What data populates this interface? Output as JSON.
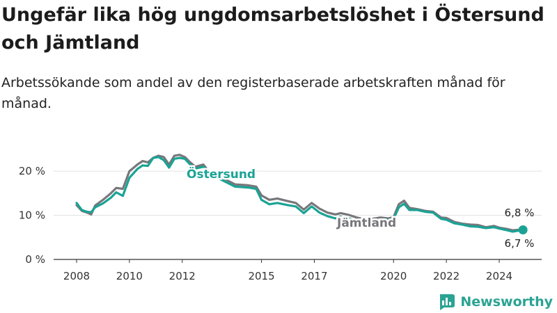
{
  "title": "Ungefär lika hög ungdomsarbetslöshet i Östersund och Jämtland",
  "subtitle": "Arbetssökande som andel av den registerbaserade arbetskraften månad för månad.",
  "brand": "Newsworthy",
  "colors": {
    "ostersund": "#1aa395",
    "jamtland": "#77777b",
    "grid": "#e2e2e2",
    "axis": "#333333"
  },
  "chart_data": {
    "type": "line",
    "title": "Ungefär lika hög ungdomsarbetslöshet i Östersund och Jämtland",
    "subtitle": "Arbetssökande som andel av den registerbaserade arbetskraften månad för månad.",
    "xlabel": "",
    "ylabel": "",
    "ylim": [
      0,
      26
    ],
    "xlim": [
      2008,
      2025.25
    ],
    "grid": "horizontal",
    "y_ticks": [
      0,
      10,
      20
    ],
    "y_tick_labels": [
      "0 %",
      "10 %",
      "20 %"
    ],
    "x_ticks": [
      2008,
      2010,
      2012,
      2015,
      2017,
      2020,
      2022,
      2024
    ],
    "x_tick_labels": [
      "2008",
      "2010",
      "2012",
      "2015",
      "2017",
      "2020",
      "2022",
      "2024"
    ],
    "series": [
      {
        "name": "Jämtland",
        "end_label": "6,8 %",
        "x": [
          2008.0,
          2008.2,
          2008.4,
          2008.55,
          2008.7,
          2009.0,
          2009.3,
          2009.5,
          2009.75,
          2010.0,
          2010.3,
          2010.5,
          2010.7,
          2010.9,
          2011.1,
          2011.3,
          2011.5,
          2011.7,
          2011.9,
          2012.1,
          2012.3,
          2012.5,
          2012.8,
          2013.0,
          2013.5,
          2014.0,
          2014.5,
          2014.8,
          2015.0,
          2015.3,
          2015.6,
          2016.0,
          2016.3,
          2016.6,
          2016.9,
          2017.2,
          2017.5,
          2017.8,
          2018.0,
          2018.3,
          2018.6,
          2019.0,
          2019.5,
          2019.8,
          2020.0,
          2020.2,
          2020.4,
          2020.6,
          2020.9,
          2021.2,
          2021.5,
          2021.8,
          2022.0,
          2022.3,
          2022.6,
          2022.9,
          2023.2,
          2023.5,
          2023.8,
          2024.0,
          2024.3,
          2024.5,
          2024.7,
          2024.9
        ],
        "y": [
          12.3,
          11.0,
          10.6,
          10.2,
          12.2,
          13.5,
          15.0,
          16.2,
          16.0,
          20.0,
          21.5,
          22.3,
          22.0,
          23.0,
          23.5,
          23.2,
          21.5,
          23.5,
          23.7,
          23.2,
          22.0,
          21.0,
          21.5,
          20.0,
          18.5,
          17.0,
          16.8,
          16.5,
          14.5,
          13.5,
          13.8,
          13.2,
          12.8,
          11.3,
          12.8,
          11.5,
          10.6,
          10.2,
          10.5,
          10.1,
          9.5,
          9.0,
          9.5,
          9.3,
          9.6,
          12.5,
          13.3,
          11.7,
          11.4,
          11.0,
          10.8,
          9.5,
          9.4,
          8.5,
          8.1,
          7.9,
          7.8,
          7.3,
          7.6,
          7.2,
          6.9,
          6.6,
          6.7,
          6.8
        ]
      },
      {
        "name": "Östersund",
        "end_label": "6,7 %",
        "x": [
          2008.0,
          2008.2,
          2008.4,
          2008.55,
          2008.7,
          2009.0,
          2009.3,
          2009.5,
          2009.75,
          2010.0,
          2010.3,
          2010.5,
          2010.7,
          2010.9,
          2011.1,
          2011.3,
          2011.5,
          2011.7,
          2011.9,
          2012.1,
          2012.3,
          2012.5,
          2012.8,
          2013.0,
          2013.5,
          2014.0,
          2014.5,
          2014.8,
          2015.0,
          2015.3,
          2015.6,
          2016.0,
          2016.3,
          2016.6,
          2016.9,
          2017.2,
          2017.5,
          2017.8,
          2018.0,
          2018.3,
          2018.6,
          2019.0,
          2019.5,
          2019.8,
          2020.0,
          2020.2,
          2020.4,
          2020.6,
          2020.9,
          2021.2,
          2021.5,
          2021.8,
          2022.0,
          2022.3,
          2022.6,
          2022.9,
          2023.2,
          2023.5,
          2023.8,
          2024.0,
          2024.3,
          2024.5,
          2024.7,
          2024.9
        ],
        "y": [
          12.8,
          11.2,
          10.8,
          10.7,
          11.8,
          12.7,
          14.0,
          15.2,
          14.4,
          18.5,
          20.5,
          21.3,
          21.2,
          23.0,
          23.2,
          22.5,
          20.8,
          22.8,
          23.0,
          22.8,
          21.5,
          20.6,
          21.0,
          19.5,
          18.0,
          16.5,
          16.3,
          16.0,
          13.5,
          12.5,
          12.8,
          12.3,
          12.0,
          10.5,
          12.0,
          10.6,
          9.8,
          9.3,
          9.7,
          9.3,
          8.8,
          8.5,
          9.0,
          9.0,
          9.2,
          11.8,
          12.6,
          11.2,
          11.2,
          10.8,
          10.6,
          9.2,
          9.0,
          8.2,
          7.9,
          7.5,
          7.4,
          7.1,
          7.3,
          7.0,
          6.6,
          6.3,
          6.5,
          6.7
        ]
      }
    ]
  }
}
